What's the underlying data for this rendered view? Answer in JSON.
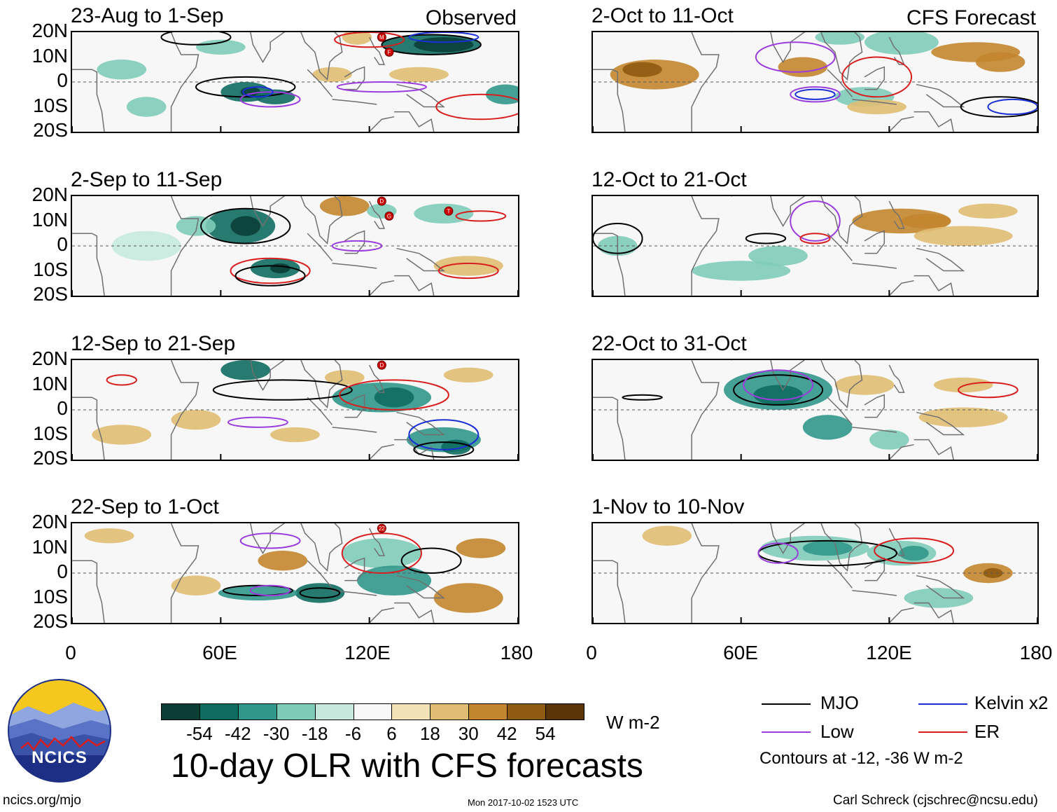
{
  "chart_data": [
    {
      "type": "heatmap",
      "title": "23-Aug to 1-Sep",
      "label": "Observed",
      "xlim": [
        0,
        180
      ],
      "ylim": [
        -20,
        20
      ],
      "yticks": [
        "20N",
        "10N",
        "0",
        "10S",
        "20S"
      ],
      "xticks": [
        "0",
        "60E",
        "120E",
        "180"
      ],
      "cyclones": [
        "M",
        "F"
      ]
    },
    {
      "type": "heatmap",
      "title": "2-Oct to 11-Oct",
      "label": "CFS Forecast",
      "xlim": [
        0,
        180
      ],
      "ylim": [
        -20,
        20
      ]
    },
    {
      "type": "heatmap",
      "title": "2-Sep to 11-Sep",
      "label": "",
      "xlim": [
        0,
        180
      ],
      "ylim": [
        -20,
        20
      ],
      "yticks": [
        "20N",
        "10N",
        "0",
        "10S",
        "20S"
      ],
      "cyclones": [
        "D",
        "G",
        "T"
      ]
    },
    {
      "type": "heatmap",
      "title": "12-Oct to 21-Oct",
      "label": "",
      "xlim": [
        0,
        180
      ],
      "ylim": [
        -20,
        20
      ]
    },
    {
      "type": "heatmap",
      "title": "12-Sep to 21-Sep",
      "label": "",
      "xlim": [
        0,
        180
      ],
      "ylim": [
        -20,
        20
      ],
      "yticks": [
        "20N",
        "10N",
        "0",
        "10S",
        "20S"
      ],
      "cyclones": [
        "D"
      ]
    },
    {
      "type": "heatmap",
      "title": "22-Oct to 31-Oct",
      "label": "",
      "xlim": [
        0,
        180
      ],
      "ylim": [
        -20,
        20
      ]
    },
    {
      "type": "heatmap",
      "title": "22-Sep to 1-Oct",
      "label": "",
      "xlim": [
        0,
        180
      ],
      "ylim": [
        -20,
        20
      ],
      "yticks": [
        "20N",
        "10N",
        "0",
        "10S",
        "20S"
      ],
      "cyclones": [
        "22"
      ]
    },
    {
      "type": "heatmap",
      "title": "1-Nov to 10-Nov",
      "label": "",
      "xlim": [
        0,
        180
      ],
      "ylim": [
        -20,
        20
      ]
    }
  ],
  "xticks": [
    "0",
    "60E",
    "120E",
    "180"
  ],
  "yticks": [
    "20N",
    "10N",
    "0",
    "10S",
    "20S"
  ],
  "colorbar": {
    "units": "W m-2",
    "labels": [
      "-54",
      "-42",
      "-30",
      "-18",
      "-6",
      "6",
      "18",
      "30",
      "42",
      "54"
    ],
    "colors": [
      "#0b3e37",
      "#0e6b60",
      "#31978b",
      "#7fcbb9",
      "#c6e9de",
      "#f8f8f8",
      "#f4e2b7",
      "#e0bd72",
      "#c3862f",
      "#8f5a11",
      "#5a3508"
    ]
  },
  "legend": {
    "items": [
      {
        "name": "MJO",
        "color": "#000000"
      },
      {
        "name": "Kelvin x2",
        "color": "#1a2fd6"
      },
      {
        "name": "Low",
        "color": "#9b3ddc"
      },
      {
        "name": "ER",
        "color": "#d81e1e"
      }
    ],
    "note": "Contours at -12, -36 W m-2"
  },
  "main_title": "10-day OLR with CFS forecasts",
  "logo_text": "NCICS",
  "footer": {
    "left": "ncics.org/mjo",
    "center": "Mon 2017-10-02 1523 UTC",
    "right": "Carl Schreck (cjschrec@ncsu.edu)"
  }
}
